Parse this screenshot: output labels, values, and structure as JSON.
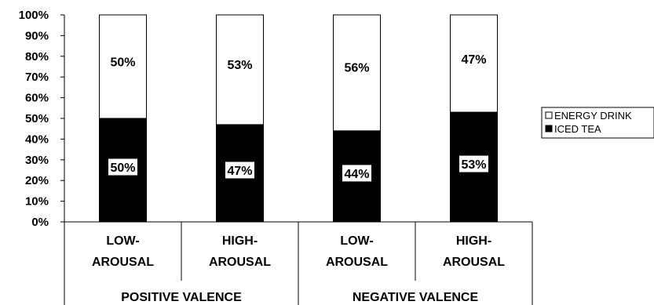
{
  "chart_data": {
    "type": "bar",
    "stacked": true,
    "categories": [
      "LOW-\nAROUSAL",
      "HIGH-\nAROUSAL",
      "LOW-\nAROUSAL",
      "HIGH-\nAROUSAL"
    ],
    "groups": [
      {
        "label": "POSITIVE VALENCE",
        "categories": [
          0,
          1
        ]
      },
      {
        "label": "NEGATIVE VALENCE",
        "categories": [
          2,
          3
        ]
      }
    ],
    "series": [
      {
        "name": "ICED TEA",
        "color": "#000000",
        "values": [
          50,
          47,
          44,
          53
        ],
        "labels": [
          "50%",
          "47%",
          "44%",
          "53%"
        ]
      },
      {
        "name": "ENERGY DRINK",
        "color": "#ffffff",
        "values": [
          50,
          53,
          56,
          47
        ],
        "labels": [
          "50%",
          "53%",
          "56%",
          "47%"
        ]
      }
    ],
    "yticks": [
      "0%",
      "10%",
      "20%",
      "30%",
      "40%",
      "50%",
      "60%",
      "70%",
      "80%",
      "90%",
      "100%"
    ],
    "ylim": [
      0,
      100
    ],
    "legend_position": "right",
    "legend_order": [
      "ENERGY DRINK",
      "ICED TEA"
    ],
    "grid": false
  }
}
